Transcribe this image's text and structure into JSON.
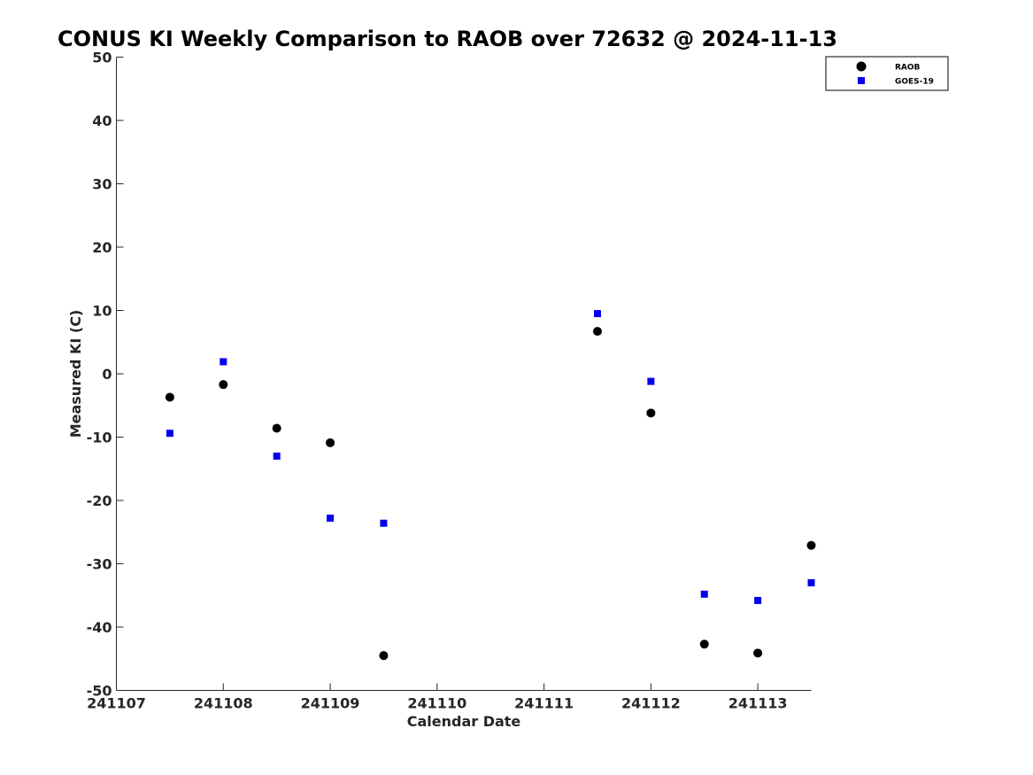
{
  "chart_data": {
    "type": "scatter",
    "title": "CONUS KI Weekly Comparison to RAOB over 72632 @ 2024-11-13",
    "xlabel": "Calendar Date",
    "ylabel": "Measured KI (C)",
    "xlim": [
      0,
      6.5
    ],
    "ylim": [
      -50,
      50
    ],
    "x_ticks": [
      {
        "value": 0,
        "label": "241107"
      },
      {
        "value": 1,
        "label": "241108"
      },
      {
        "value": 2,
        "label": "241109"
      },
      {
        "value": 3,
        "label": "241110"
      },
      {
        "value": 4,
        "label": "241111"
      },
      {
        "value": 5,
        "label": "241112"
      },
      {
        "value": 6,
        "label": "241113"
      }
    ],
    "y_ticks": [
      50,
      40,
      30,
      20,
      10,
      0,
      -10,
      -20,
      -30,
      -40,
      -50
    ],
    "y_tick_labels": [
      "50",
      "40",
      "30",
      "20",
      "10",
      "0",
      "-10",
      "-20",
      "-30",
      "-40",
      "-50"
    ],
    "grid": false,
    "legend_position": "top-right",
    "series": [
      {
        "name": "RAOB",
        "marker": "circle",
        "color": "#000000",
        "points": [
          {
            "x": 0.5,
            "y": -3.7
          },
          {
            "x": 1.0,
            "y": -1.7
          },
          {
            "x": 1.5,
            "y": -8.6
          },
          {
            "x": 2.0,
            "y": -10.9
          },
          {
            "x": 2.5,
            "y": -44.5
          },
          {
            "x": 4.5,
            "y": 6.7
          },
          {
            "x": 5.0,
            "y": -6.2
          },
          {
            "x": 5.5,
            "y": -42.7
          },
          {
            "x": 6.0,
            "y": -44.1
          },
          {
            "x": 6.5,
            "y": -27.1
          }
        ]
      },
      {
        "name": "GOES-19",
        "marker": "square",
        "color": "#0000ee",
        "points": [
          {
            "x": 0.5,
            "y": -9.4
          },
          {
            "x": 1.0,
            "y": 1.9
          },
          {
            "x": 1.5,
            "y": -13.0
          },
          {
            "x": 2.0,
            "y": -22.8
          },
          {
            "x": 2.5,
            "y": -23.6
          },
          {
            "x": 4.5,
            "y": 9.5
          },
          {
            "x": 5.0,
            "y": -1.2
          },
          {
            "x": 5.5,
            "y": -34.8
          },
          {
            "x": 6.0,
            "y": -35.8
          },
          {
            "x": 6.5,
            "y": -33.0
          }
        ]
      }
    ]
  }
}
